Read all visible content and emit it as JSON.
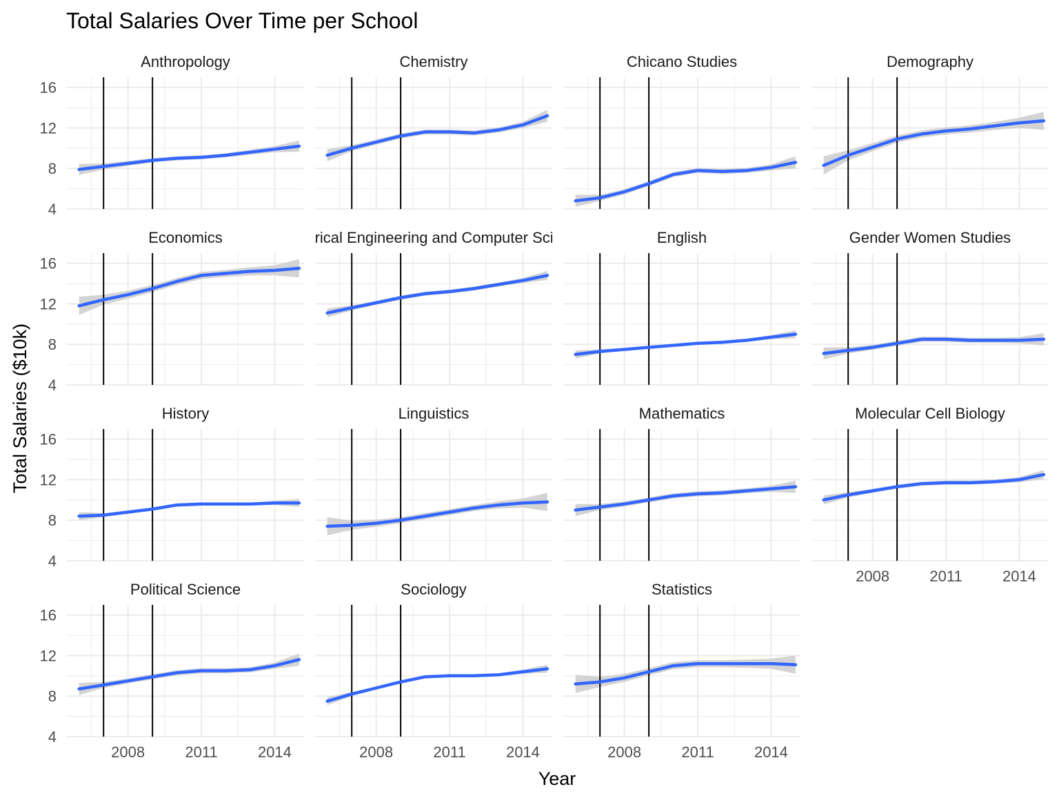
{
  "chart_data": {
    "type": "line",
    "title": "Total Salaries Over Time per School",
    "xlabel": "Year",
    "ylabel": "Total Salaries ($10k)",
    "xlim": [
      2005.5,
      2015.2
    ],
    "ylim": [
      4,
      17
    ],
    "x_ticks": [
      2008,
      2011,
      2014
    ],
    "y_ticks": [
      4,
      8,
      12,
      16
    ],
    "vertical_lines": [
      2007,
      2009
    ],
    "grid": true,
    "layout": "facet_wrap 4 columns",
    "smooth_color": "#3366FF",
    "ribbon_color": "#cccccc",
    "panels": [
      {
        "name": "Anthropology",
        "x": [
          2006,
          2007,
          2008,
          2009,
          2010,
          2011,
          2012,
          2013,
          2014,
          2015
        ],
        "y": [
          7.9,
          8.2,
          8.5,
          8.8,
          9.0,
          9.1,
          9.3,
          9.6,
          9.9,
          10.2
        ],
        "se": [
          0.55,
          0.3,
          0.25,
          0.2,
          0.2,
          0.2,
          0.2,
          0.25,
          0.3,
          0.55
        ]
      },
      {
        "name": "Chemistry",
        "x": [
          2006,
          2007,
          2008,
          2009,
          2010,
          2011,
          2012,
          2013,
          2014,
          2015
        ],
        "y": [
          9.3,
          10.0,
          10.6,
          11.2,
          11.6,
          11.6,
          11.5,
          11.8,
          12.3,
          13.2
        ],
        "se": [
          0.6,
          0.3,
          0.25,
          0.25,
          0.25,
          0.25,
          0.25,
          0.25,
          0.3,
          0.6
        ]
      },
      {
        "name": "Chicano Studies",
        "x": [
          2006,
          2007,
          2008,
          2009,
          2010,
          2011,
          2012,
          2013,
          2014,
          2015
        ],
        "y": [
          4.8,
          5.1,
          5.7,
          6.5,
          7.4,
          7.8,
          7.7,
          7.8,
          8.1,
          8.6
        ],
        "se": [
          0.6,
          0.3,
          0.25,
          0.25,
          0.25,
          0.25,
          0.25,
          0.25,
          0.3,
          0.6
        ]
      },
      {
        "name": "Demography",
        "x": [
          2006,
          2007,
          2008,
          2009,
          2010,
          2011,
          2012,
          2013,
          2014,
          2015
        ],
        "y": [
          8.3,
          9.3,
          10.1,
          10.9,
          11.4,
          11.7,
          11.9,
          12.2,
          12.5,
          12.7
        ],
        "se": [
          0.9,
          0.5,
          0.4,
          0.35,
          0.35,
          0.35,
          0.35,
          0.4,
          0.5,
          0.9
        ]
      },
      {
        "name": "Economics",
        "x": [
          2006,
          2007,
          2008,
          2009,
          2010,
          2011,
          2012,
          2013,
          2014,
          2015
        ],
        "y": [
          11.8,
          12.4,
          12.9,
          13.5,
          14.2,
          14.8,
          15.0,
          15.2,
          15.3,
          15.5
        ],
        "se": [
          0.9,
          0.5,
          0.4,
          0.35,
          0.35,
          0.35,
          0.35,
          0.4,
          0.5,
          0.9
        ]
      },
      {
        "name": "Electrical Engineering and Computer Science",
        "x": [
          2006,
          2007,
          2008,
          2009,
          2010,
          2011,
          2012,
          2013,
          2014,
          2015
        ],
        "y": [
          11.1,
          11.6,
          12.1,
          12.6,
          13.0,
          13.2,
          13.5,
          13.9,
          14.3,
          14.8
        ],
        "se": [
          0.45,
          0.25,
          0.2,
          0.2,
          0.2,
          0.2,
          0.2,
          0.2,
          0.25,
          0.45
        ]
      },
      {
        "name": "English",
        "x": [
          2006,
          2007,
          2008,
          2009,
          2010,
          2011,
          2012,
          2013,
          2014,
          2015
        ],
        "y": [
          7.0,
          7.3,
          7.5,
          7.7,
          7.9,
          8.1,
          8.2,
          8.4,
          8.7,
          9.0
        ],
        "se": [
          0.4,
          0.2,
          0.15,
          0.15,
          0.15,
          0.15,
          0.15,
          0.15,
          0.2,
          0.4
        ]
      },
      {
        "name": "Gender Women Studies",
        "x": [
          2006,
          2007,
          2008,
          2009,
          2010,
          2011,
          2012,
          2013,
          2014,
          2015
        ],
        "y": [
          7.1,
          7.4,
          7.7,
          8.1,
          8.5,
          8.5,
          8.4,
          8.4,
          8.4,
          8.5
        ],
        "se": [
          0.6,
          0.3,
          0.25,
          0.25,
          0.25,
          0.25,
          0.25,
          0.25,
          0.3,
          0.6
        ]
      },
      {
        "name": "History",
        "x": [
          2006,
          2007,
          2008,
          2009,
          2010,
          2011,
          2012,
          2013,
          2014,
          2015
        ],
        "y": [
          8.4,
          8.5,
          8.8,
          9.1,
          9.5,
          9.6,
          9.6,
          9.6,
          9.7,
          9.7
        ],
        "se": [
          0.4,
          0.2,
          0.15,
          0.15,
          0.15,
          0.15,
          0.15,
          0.15,
          0.2,
          0.4
        ]
      },
      {
        "name": "Linguistics",
        "x": [
          2006,
          2007,
          2008,
          2009,
          2010,
          2011,
          2012,
          2013,
          2014,
          2015
        ],
        "y": [
          7.4,
          7.5,
          7.7,
          8.0,
          8.4,
          8.8,
          9.2,
          9.5,
          9.7,
          9.8
        ],
        "se": [
          0.9,
          0.45,
          0.35,
          0.3,
          0.3,
          0.3,
          0.3,
          0.35,
          0.45,
          0.9
        ]
      },
      {
        "name": "Mathematics",
        "x": [
          2006,
          2007,
          2008,
          2009,
          2010,
          2011,
          2012,
          2013,
          2014,
          2015
        ],
        "y": [
          9.0,
          9.3,
          9.6,
          10.0,
          10.4,
          10.6,
          10.7,
          10.9,
          11.1,
          11.3
        ],
        "se": [
          0.6,
          0.3,
          0.25,
          0.25,
          0.25,
          0.25,
          0.25,
          0.25,
          0.3,
          0.6
        ]
      },
      {
        "name": "Molecular Cell Biology",
        "x": [
          2006,
          2007,
          2008,
          2009,
          2010,
          2011,
          2012,
          2013,
          2014,
          2015
        ],
        "y": [
          10.0,
          10.5,
          10.9,
          11.3,
          11.6,
          11.7,
          11.7,
          11.8,
          12.0,
          12.5
        ],
        "se": [
          0.45,
          0.25,
          0.2,
          0.2,
          0.2,
          0.2,
          0.2,
          0.2,
          0.25,
          0.45
        ]
      },
      {
        "name": "Political Science",
        "x": [
          2006,
          2007,
          2008,
          2009,
          2010,
          2011,
          2012,
          2013,
          2014,
          2015
        ],
        "y": [
          8.7,
          9.1,
          9.5,
          9.9,
          10.3,
          10.5,
          10.5,
          10.6,
          11.0,
          11.6
        ],
        "se": [
          0.6,
          0.3,
          0.25,
          0.25,
          0.25,
          0.25,
          0.25,
          0.25,
          0.3,
          0.6
        ]
      },
      {
        "name": "Sociology",
        "x": [
          2006,
          2007,
          2008,
          2009,
          2010,
          2011,
          2012,
          2013,
          2014,
          2015
        ],
        "y": [
          7.5,
          8.2,
          8.8,
          9.4,
          9.9,
          10.0,
          10.0,
          10.1,
          10.4,
          10.7
        ],
        "se": [
          0.4,
          0.2,
          0.15,
          0.15,
          0.15,
          0.15,
          0.15,
          0.15,
          0.2,
          0.4
        ]
      },
      {
        "name": "Statistics",
        "x": [
          2006,
          2007,
          2008,
          2009,
          2010,
          2011,
          2012,
          2013,
          2014,
          2015
        ],
        "y": [
          9.2,
          9.4,
          9.8,
          10.4,
          11.0,
          11.2,
          11.2,
          11.2,
          11.2,
          11.1
        ],
        "se": [
          0.9,
          0.5,
          0.4,
          0.35,
          0.35,
          0.35,
          0.35,
          0.4,
          0.5,
          0.9
        ]
      }
    ]
  }
}
